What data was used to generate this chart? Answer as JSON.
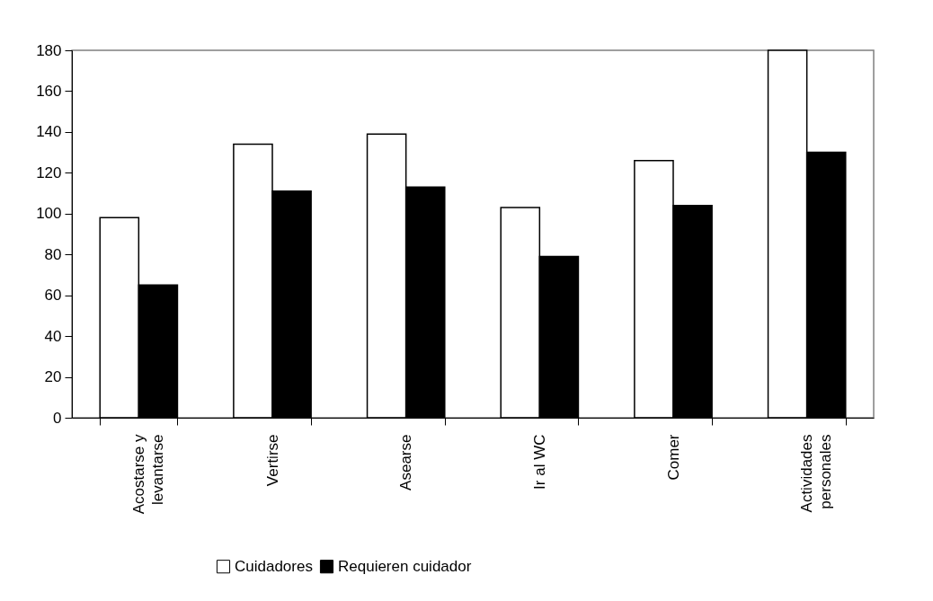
{
  "chart_data": {
    "type": "bar",
    "categories": [
      "Acostarse y levantarse",
      "Vertirse",
      "Asearse",
      "Ir al WC",
      "Comer",
      "Actividades personales"
    ],
    "series": [
      {
        "name": "Cuidadores",
        "color": "#ffffff",
        "values": [
          98,
          134,
          139,
          103,
          126,
          180
        ]
      },
      {
        "name": "Requieren cuidador",
        "color": "#000000",
        "values": [
          65,
          111,
          113,
          79,
          104,
          130
        ]
      }
    ],
    "ylim": [
      0,
      180
    ],
    "yticks": [
      0,
      20,
      40,
      60,
      80,
      100,
      120,
      140,
      160,
      180
    ],
    "grid": false,
    "legend": "bottom"
  }
}
